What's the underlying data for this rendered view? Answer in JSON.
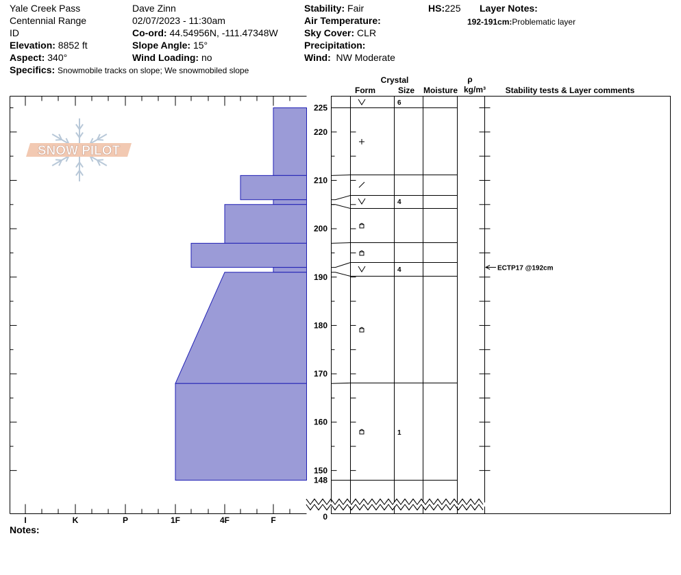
{
  "header": {
    "location": "Yale Creek Pass",
    "range": "Centennial Range",
    "state": "ID",
    "elevation_label": "Elevation:",
    "elevation": "8852 ft",
    "aspect_label": "Aspect:",
    "aspect": "340°",
    "specifics_label": "Specifics:",
    "specifics": "Snowmobile tracks on slope; We snowmobiled slope",
    "observer": "Dave Zinn",
    "datetime": "02/07/2023 - 11:30am",
    "coord_label": "Co-ord:",
    "coord": "44.54956N, -111.47348W",
    "slope_label": "Slope Angle:",
    "slope": "15°",
    "wind_loading_label": "Wind Loading:",
    "wind_loading": "no",
    "stability_label": "Stability:",
    "stability": "Fair",
    "air_temp_label": "Air Temperature:",
    "air_temp": "",
    "sky_label": "Sky Cover:",
    "sky": "CLR",
    "precip_label": "Precipitation:",
    "precip": "",
    "wind_label": "Wind:",
    "wind": "NW Moderate",
    "hs_label": "HS:",
    "hs": "225",
    "layer_notes_label": "Layer Notes:",
    "layer_note_range": "192-191cm:",
    "layer_note_text": "Problematic layer"
  },
  "columns": {
    "crystal": "Crystal",
    "form": "Form",
    "size": "Size",
    "moisture": "Moisture",
    "rho": "ρ",
    "density_unit": "kg/m³",
    "comments": "Stability tests & Layer comments"
  },
  "logo_text": "SNOW PILOT",
  "notes_label": "Notes:",
  "colors": {
    "hardness_fill": "#9b9bd7",
    "hardness_stroke": "#1f1fb4"
  },
  "chart_data": {
    "type": "snow-profile",
    "x_axis": {
      "ticks": [
        "I",
        "K",
        "P",
        "1F",
        "4F",
        "F"
      ]
    },
    "y_axis": {
      "unit": "cm",
      "ticks": [
        150,
        160,
        170,
        180,
        190,
        200,
        210,
        220
      ],
      "extra_ticks": [
        148,
        225,
        0
      ],
      "range": [
        148,
        225
      ]
    },
    "hardness_profile": [
      {
        "top": 225,
        "bottom": 211,
        "hardness_top": "F",
        "hardness_bottom": "F"
      },
      {
        "top": 211,
        "bottom": 206,
        "hardness_top": "4F+",
        "hardness_bottom": "4F+"
      },
      {
        "top": 206,
        "bottom": 205,
        "hardness_top": "F",
        "hardness_bottom": "F"
      },
      {
        "top": 205,
        "bottom": 197,
        "hardness_top": "4F",
        "hardness_bottom": "4F"
      },
      {
        "top": 197,
        "bottom": 192,
        "hardness_top": "1F+",
        "hardness_bottom": "1F+"
      },
      {
        "top": 192,
        "bottom": 191,
        "hardness_top": "F",
        "hardness_bottom": "F"
      },
      {
        "top": 191,
        "bottom": 168,
        "hardness_top": "4F",
        "hardness_bottom": "1F"
      },
      {
        "top": 168,
        "bottom": 148,
        "hardness_top": "1F",
        "hardness_bottom": "1F"
      }
    ],
    "layers": [
      {
        "top": 225,
        "bottom": 223,
        "form": "surface-hoar",
        "size": "6"
      },
      {
        "top": 223,
        "bottom": 211,
        "form": "precipitation-particles",
        "size": ""
      },
      {
        "top": 211,
        "bottom": 207,
        "form": "decomposing-fragmented",
        "size": ""
      },
      {
        "top": 207,
        "bottom": 205,
        "form": "surface-hoar",
        "size": "4"
      },
      {
        "top": 205,
        "bottom": 197,
        "form": "faceted-crystals",
        "size": ""
      },
      {
        "top": 197,
        "bottom": 193,
        "form": "faceted-crystals",
        "size": ""
      },
      {
        "top": 193,
        "bottom": 190,
        "form": "surface-hoar",
        "size": "4"
      },
      {
        "top": 190,
        "bottom": 168,
        "form": "faceted-crystals",
        "size": ""
      },
      {
        "top": 168,
        "bottom": 148,
        "form": "faceted-crystals",
        "size": "1"
      }
    ],
    "tests": [
      {
        "depth": 192,
        "result": "ECTP17 @192cm"
      }
    ]
  }
}
